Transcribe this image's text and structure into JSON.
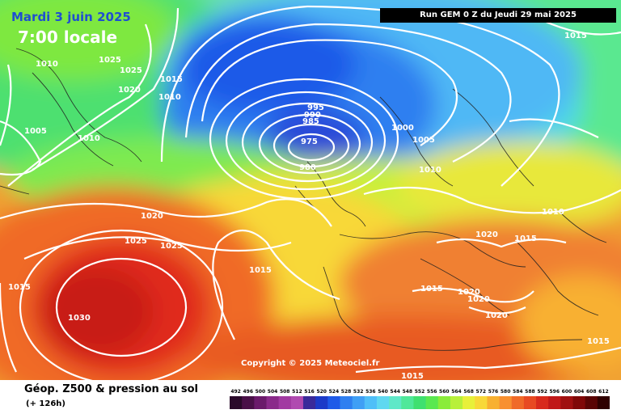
{
  "header": {
    "date": "Mardi 3 juin 2025",
    "time": "7:00 locale",
    "run": "Run GEM 0 Z du Jeudi 29 mai 2025"
  },
  "copyright": "Copyright © 2025 Meteociel.fr",
  "footer": {
    "title": "Géop. Z500 & pression au sol",
    "subtitle": "(+ 126h)"
  },
  "legend": {
    "values": [
      "492",
      "496",
      "500",
      "504",
      "508",
      "512",
      "516",
      "520",
      "524",
      "528",
      "532",
      "536",
      "540",
      "544",
      "548",
      "552",
      "556",
      "560",
      "564",
      "568",
      "572",
      "576",
      "580",
      "584",
      "588",
      "592",
      "596",
      "600",
      "604",
      "608",
      "612"
    ],
    "colors": [
      "#2a0a2a",
      "#4a1048",
      "#6b1a6b",
      "#8a2a8a",
      "#a23aa2",
      "#b04ab0",
      "#3a2a9a",
      "#1c3ac8",
      "#1f5ae8",
      "#2f7ff0",
      "#3f9ff5",
      "#4fbff8",
      "#5fd8f0",
      "#5fe8c8",
      "#4fe89a",
      "#3fe070",
      "#5ae850",
      "#8aec3a",
      "#b8f03a",
      "#e8f03a",
      "#f8d838",
      "#f8b030",
      "#f89030",
      "#f06a28",
      "#e84a22",
      "#d82a1c",
      "#c01818",
      "#a01010",
      "#800808",
      "#5a0404",
      "#300000"
    ]
  },
  "isobars": [
    {
      "id": "iso-1010-greenland",
      "label": "1010"
    },
    {
      "id": "iso-1025-north",
      "label": "1025"
    },
    {
      "id": "iso-1025-north-b",
      "label": "1025"
    },
    {
      "id": "iso-1020-north",
      "label": "1020"
    },
    {
      "id": "iso-1015-north",
      "label": "1015"
    },
    {
      "id": "iso-1010-north",
      "label": "1010"
    },
    {
      "id": "iso-1005-west",
      "label": "1005"
    },
    {
      "id": "iso-1010-west",
      "label": "1010"
    },
    {
      "id": "iso-995",
      "label": "995"
    },
    {
      "id": "iso-990",
      "label": "990"
    },
    {
      "id": "iso-985",
      "label": "985"
    },
    {
      "id": "iso-975",
      "label": "975"
    },
    {
      "id": "iso-980",
      "label": "980"
    },
    {
      "id": "iso-1000",
      "label": "1000"
    },
    {
      "id": "iso-1005-ne",
      "label": "1005"
    },
    {
      "id": "iso-1010-eu",
      "label": "1010"
    },
    {
      "id": "iso-1015-ne",
      "label": "1015"
    },
    {
      "id": "iso-1010-e",
      "label": "1010"
    },
    {
      "id": "iso-1020-eu",
      "label": "1020"
    },
    {
      "id": "iso-1015-eu",
      "label": "1015"
    },
    {
      "id": "iso-1020-atl",
      "label": "1020"
    },
    {
      "id": "iso-1025-atl",
      "label": "1025"
    },
    {
      "id": "iso-1025-atl-b",
      "label": "1025"
    },
    {
      "id": "iso-1015-mid",
      "label": "1015"
    },
    {
      "id": "iso-1015-w",
      "label": "1015"
    },
    {
      "id": "iso-1030",
      "label": "1030"
    },
    {
      "id": "iso-1015-med",
      "label": "1015"
    },
    {
      "id": "iso-1020-med-a",
      "label": "1020"
    },
    {
      "id": "iso-1020-med-b",
      "label": "1020"
    },
    {
      "id": "iso-1020-med-c",
      "label": "1020"
    },
    {
      "id": "iso-1015-se",
      "label": "1015"
    },
    {
      "id": "iso-1015-s",
      "label": "1015"
    }
  ]
}
